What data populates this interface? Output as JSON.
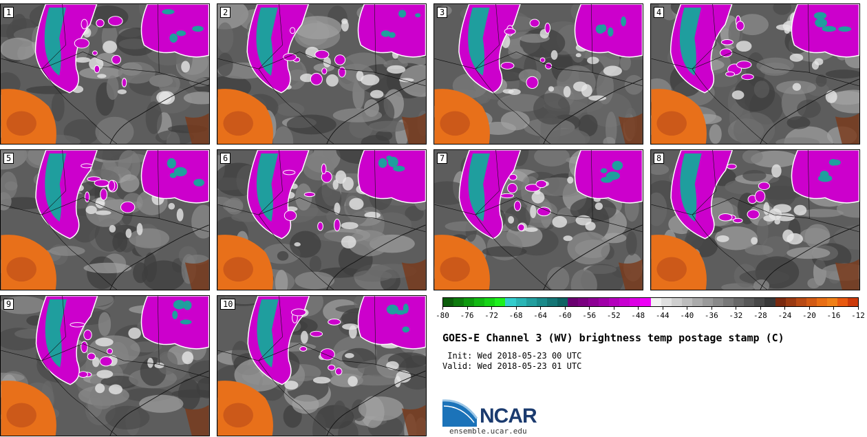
{
  "panels": [
    {
      "label": "1"
    },
    {
      "label": "2"
    },
    {
      "label": "3"
    },
    {
      "label": "4"
    },
    {
      "label": "5"
    },
    {
      "label": "6"
    },
    {
      "label": "7"
    },
    {
      "label": "8"
    },
    {
      "label": "9"
    },
    {
      "label": "10"
    }
  ],
  "colorbar": {
    "colors": [
      "#0b5c0b",
      "#0d7a0d",
      "#0e990e",
      "#12b812",
      "#16d416",
      "#1ef01e",
      "#33cccc",
      "#2ab5b5",
      "#229e9e",
      "#1a8a8a",
      "#147575",
      "#0e6262",
      "#6a0070",
      "#7a0080",
      "#8d0094",
      "#a000a8",
      "#b400bc",
      "#c800d0",
      "#dc00e4",
      "#ee00f6",
      "#f2f2f2",
      "#e0e0e0",
      "#cfcfcf",
      "#bdbdbd",
      "#ababab",
      "#9a9a9a",
      "#898989",
      "#787878",
      "#686868",
      "#585858",
      "#484848",
      "#383838",
      "#7a2a10",
      "#9a3a12",
      "#b84a14",
      "#d25a14",
      "#e86e14",
      "#f08018",
      "#e85a10",
      "#cc3a0a"
    ],
    "ticks": [
      "-80",
      "-76",
      "-72",
      "-68",
      "-64",
      "-60",
      "-56",
      "-52",
      "-48",
      "-44",
      "-40",
      "-36",
      "-32",
      "-28",
      "-24",
      "-20",
      "-16",
      "-12"
    ]
  },
  "title": "GOES-E Channel 3 (WV) brightness temp postage stamp (C)",
  "init": " Init: Wed 2018-05-23 00 UTC",
  "valid": "Valid: Wed 2018-05-23 01 UTC",
  "logo_text": "NCAR",
  "site": "ensemble.ucar.edu",
  "palette": {
    "magenta": "#cc00cc",
    "teal": "#1f9e9e",
    "orange": "#e8701a",
    "dark_orange": "#c0501a",
    "gray": "#5d5d5d",
    "light": "#d9d9d9"
  }
}
